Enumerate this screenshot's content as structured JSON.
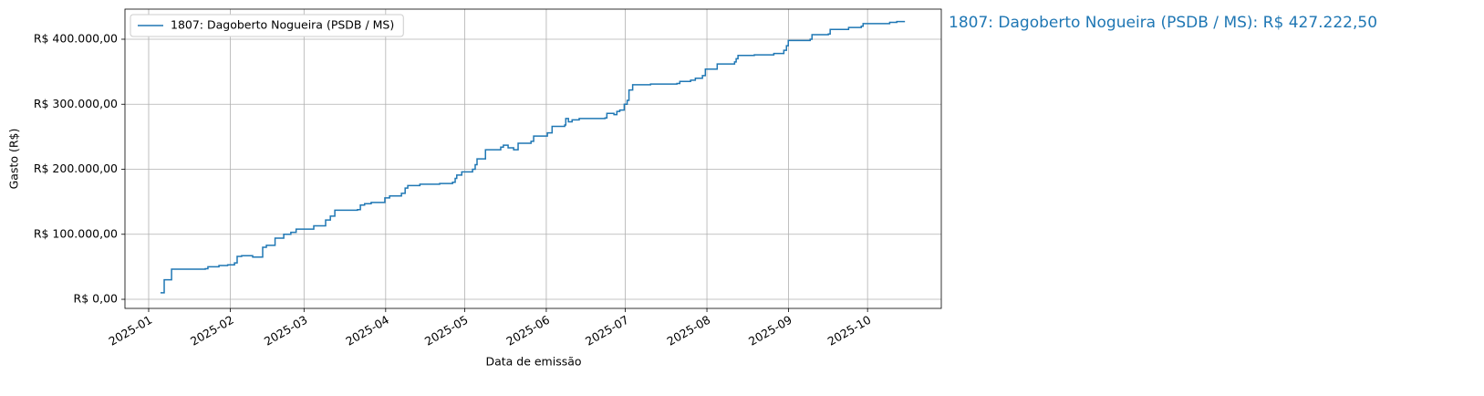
{
  "chart_data": {
    "type": "line",
    "drawstyle": "steps-post",
    "xlabel": "Data de emissão",
    "ylabel": "Gasto (R$)",
    "annotation": "1807: Dagoberto Nogueira (PSDB / MS): R$ 427.222,50",
    "legend": "upper left",
    "grid": true,
    "xlim": [
      -9,
      301
    ],
    "xticks": [
      {
        "value": 0,
        "label": "2025-01"
      },
      {
        "value": 31,
        "label": "2025-02"
      },
      {
        "value": 59,
        "label": "2025-03"
      },
      {
        "value": 90,
        "label": "2025-04"
      },
      {
        "value": 120,
        "label": "2025-05"
      },
      {
        "value": 151,
        "label": "2025-06"
      },
      {
        "value": 181,
        "label": "2025-07"
      },
      {
        "value": 212,
        "label": "2025-08"
      },
      {
        "value": 243,
        "label": "2025-09"
      },
      {
        "value": 273,
        "label": "2025-10"
      }
    ],
    "ylim": [
      -14000,
      446300
    ],
    "yticks": [
      {
        "value": 0,
        "label": "R$ 0,00"
      },
      {
        "value": 100000,
        "label": "R$ 100.000,00"
      },
      {
        "value": 200000,
        "label": "R$ 200.000,00"
      },
      {
        "value": 300000,
        "label": "R$ 300.000,00"
      },
      {
        "value": 400000,
        "label": "R$ 400.000,00"
      }
    ],
    "x": [
      4.5,
      5.9,
      8.7,
      21.5,
      22.5,
      26.7,
      30,
      32.6,
      33.6,
      35.3,
      39.5,
      43.3,
      44.7,
      48,
      51.3,
      54,
      56,
      62.7,
      67.2,
      69,
      70.7,
      79.3,
      80.4,
      82,
      84.5,
      89.7,
      91.5,
      96,
      97.4,
      98.4,
      103,
      110.5,
      115.4,
      116.4,
      117,
      118.9,
      123,
      124,
      124.7,
      127.9,
      133.7,
      134.7,
      136.5,
      138.6,
      140.3,
      145.2,
      146.2,
      151.4,
      153.2,
      158,
      158.4,
      159.4,
      160.8,
      163.5,
      173.3,
      174,
      176.7,
      177.8,
      178.9,
      180.6,
      181.7,
      182.4,
      183.8,
      190.6,
      200.6,
      201.7,
      205.8,
      207.6,
      210.3,
      211.4,
      215.9,
      222.5,
      223.1,
      223.8,
      230,
      237.4,
      241.2,
      242.2,
      242.9,
      251.2,
      251.9,
      258.1,
      258.8,
      265.8,
      270.6,
      271.3,
      281.4,
      284.1,
      287.2
    ],
    "series": [
      {
        "name": "1807: Dagoberto Nogueira (PSDB / MS)",
        "color": "#1f77b4",
        "values": [
          10000,
          30000,
          46300,
          47000,
          50000,
          52000,
          53000,
          56000,
          66000,
          67000,
          65000,
          80000,
          83000,
          94000,
          100000,
          103000,
          108000,
          113000,
          122000,
          128000,
          137000,
          138000,
          145000,
          147000,
          149000,
          156000,
          159000,
          163000,
          171000,
          175000,
          177000,
          178000,
          180000,
          186000,
          191000,
          196000,
          200000,
          207000,
          216000,
          230000,
          234000,
          237000,
          233000,
          230000,
          240000,
          243000,
          251000,
          256000,
          266000,
          268000,
          278000,
          273000,
          276000,
          278000,
          279000,
          286000,
          284000,
          289000,
          291000,
          300000,
          306000,
          322000,
          330000,
          331000,
          332000,
          335000,
          337000,
          340000,
          344000,
          354000,
          362000,
          365000,
          370000,
          375000,
          376000,
          378000,
          383000,
          390000,
          398000,
          400000,
          407000,
          408000,
          415000,
          418000,
          420000,
          424000,
          426000,
          427222.5,
          427222.5
        ]
      }
    ]
  }
}
